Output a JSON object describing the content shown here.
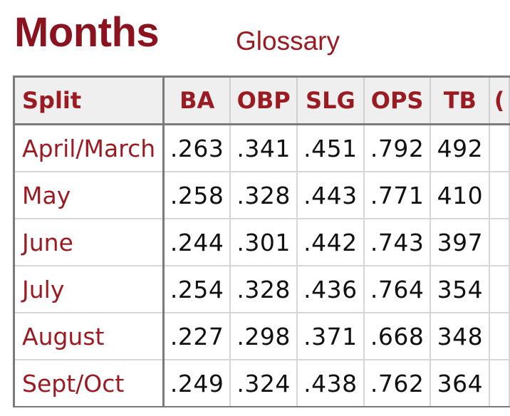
{
  "header": {
    "title": "Months",
    "glossary_label": "Glossary"
  },
  "colors": {
    "title": "#8b1320",
    "link": "#9b1b22",
    "header_bg": "#efefef",
    "border": "#7a7a7a"
  },
  "table": {
    "columns": [
      "Split",
      "BA",
      "OBP",
      "SLG",
      "OPS",
      "TB",
      "("
    ],
    "rows": [
      {
        "split": "April/March",
        "ba": ".263",
        "obp": ".341",
        "slg": ".451",
        "ops": ".792",
        "tb": "492"
      },
      {
        "split": "May",
        "ba": ".258",
        "obp": ".328",
        "slg": ".443",
        "ops": ".771",
        "tb": "410"
      },
      {
        "split": "June",
        "ba": ".244",
        "obp": ".301",
        "slg": ".442",
        "ops": ".743",
        "tb": "397"
      },
      {
        "split": "July",
        "ba": ".254",
        "obp": ".328",
        "slg": ".436",
        "ops": ".764",
        "tb": "354"
      },
      {
        "split": "August",
        "ba": ".227",
        "obp": ".298",
        "slg": ".371",
        "ops": ".668",
        "tb": "348"
      },
      {
        "split": "Sept/Oct",
        "ba": ".249",
        "obp": ".324",
        "slg": ".438",
        "ops": ".762",
        "tb": "364"
      }
    ]
  }
}
